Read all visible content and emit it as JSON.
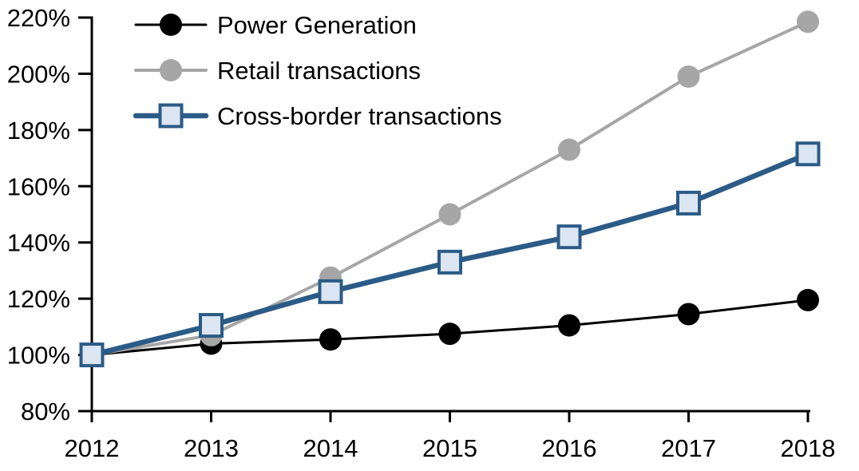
{
  "chart": {
    "background_color": "#ffffff",
    "axis_color": "#000000",
    "text_color": "#000000"
  },
  "chart_data": {
    "type": "line",
    "title": "",
    "subtitle": "",
    "xlabel": "",
    "ylabel": "",
    "grid": false,
    "legend_position": "top-left",
    "categories": [
      "2012",
      "2013",
      "2014",
      "2015",
      "2016",
      "2017",
      "2018"
    ],
    "x_values": [
      2012,
      2013,
      2014,
      2015,
      2016,
      2017,
      2018
    ],
    "ylim": [
      80,
      220
    ],
    "ytick_step": 20,
    "ytick_labels": [
      "80%",
      "100%",
      "120%",
      "140%",
      "160%",
      "180%",
      "200%",
      "220%"
    ],
    "ytick_values": [
      80,
      100,
      120,
      140,
      160,
      180,
      200,
      220
    ],
    "unit": "percent-indexed-to-2012",
    "series": [
      {
        "name": "Power Generation",
        "values": [
          100,
          104,
          105.5,
          107.5,
          110.5,
          114.5,
          119.5
        ],
        "line_color": "#000000",
        "line_width": 3,
        "marker": "circle",
        "marker_fill": "#000000",
        "marker_stroke": "#000000",
        "marker_stroke_width": 0,
        "marker_size": 28
      },
      {
        "name": "Retail transactions",
        "values": [
          100,
          107,
          127.5,
          150,
          173,
          199,
          218.5
        ],
        "line_color": "#a6a6a6",
        "line_width": 4,
        "marker": "circle",
        "marker_fill": "#a6a6a6",
        "marker_stroke": "#a6a6a6",
        "marker_stroke_width": 0,
        "marker_size": 28
      },
      {
        "name": "Cross-border transactions",
        "values": [
          100,
          110.5,
          122.5,
          133,
          142,
          154,
          171.5
        ],
        "line_color": "#2b5b87",
        "line_width": 6.5,
        "marker": "square",
        "marker_fill": "#dce6f2",
        "marker_stroke": "#2b5b87",
        "marker_stroke_width": 4,
        "marker_size": 27
      }
    ]
  }
}
